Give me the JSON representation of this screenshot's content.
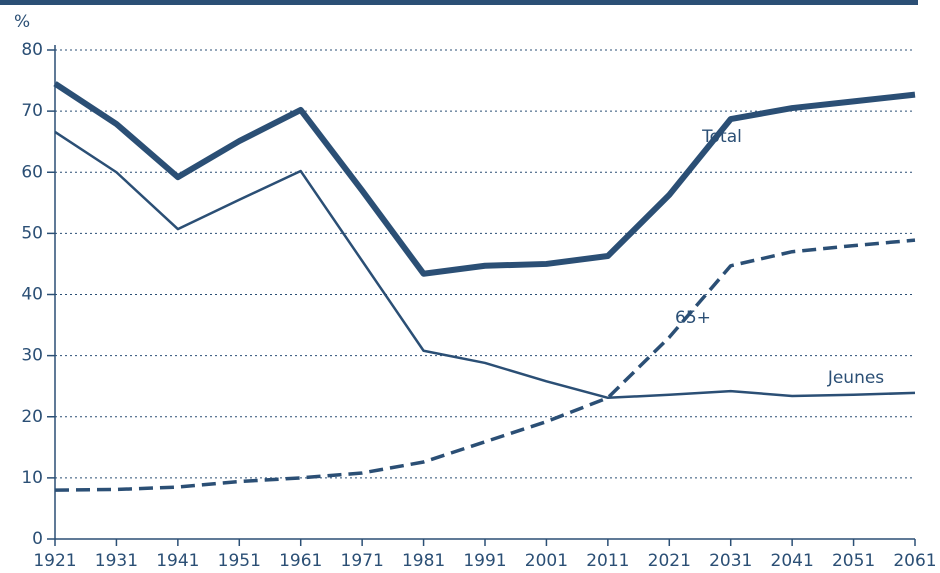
{
  "chart_data": {
    "type": "line",
    "y_axis_label": "%",
    "x": [
      1921,
      1931,
      1941,
      1951,
      1961,
      1971,
      1981,
      1991,
      2001,
      2011,
      2021,
      2031,
      2041,
      2051,
      2061
    ],
    "xlim": [
      1921,
      2061
    ],
    "xticks": [
      1921,
      1931,
      1941,
      1951,
      1961,
      1971,
      1981,
      1991,
      2001,
      2011,
      2021,
      2031,
      2041,
      2051,
      2061
    ],
    "ylim": [
      0,
      80
    ],
    "yticks": [
      0,
      10,
      20,
      30,
      40,
      50,
      60,
      70,
      80
    ],
    "grid": true,
    "series": [
      {
        "name": "Total",
        "color": "#2b4f75",
        "style": "solid",
        "values": [
          74.5,
          67.9,
          59.2,
          65.1,
          70.2,
          57,
          43.4,
          44.7,
          45,
          46.3,
          56.3,
          68.7,
          70.5,
          71.6,
          72.7
        ]
      },
      {
        "name": "Jeunes",
        "color": "#2b4f75",
        "style": "solid",
        "values": [
          66.6,
          60,
          50.7,
          55.5,
          60.2,
          45.5,
          30.8,
          28.8,
          25.8,
          23.1,
          23.6,
          24.2,
          23.4,
          23.6,
          23.9
        ]
      },
      {
        "name": "65+",
        "color": "#2b4f75",
        "style": "dashed",
        "values": [
          8,
          8.1,
          8.5,
          9.4,
          10,
          10.8,
          12.6,
          15.9,
          19.2,
          23.1,
          33,
          44.7,
          47,
          48,
          48.9
        ]
      }
    ]
  }
}
